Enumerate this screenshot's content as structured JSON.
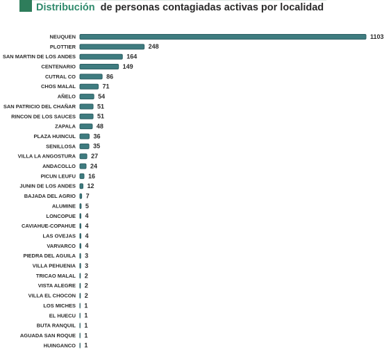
{
  "chart_data": {
    "type": "bar",
    "orientation": "horizontal",
    "title": [
      "Distribución",
      "de personas contagiadas activas por localidad"
    ],
    "color": "#3f7c80",
    "categories": [
      "NEUQUEN",
      "PLOTTIER",
      "SAN MARTIN DE LOS ANDES",
      "CENTENARIO",
      "CUTRAL CO",
      "CHOS MALAL",
      "AÑELO",
      "SAN PATRICIO DEL CHAÑAR",
      "RINCON DE LOS SAUCES",
      "ZAPALA",
      "PLAZA HUINCUL",
      "SENILLOSA",
      "VILLA LA ANGOSTURA",
      "ANDACOLLO",
      "PICUN LEUFU",
      "JUNIN DE LOS ANDES",
      "BAJADA DEL AGRIO",
      "ALUMINE",
      "LONCOPUE",
      "CAVIAHUE-COPAHUE",
      "LAS OVEJAS",
      "VARVARCO",
      "PIEDRA DEL AGUILA",
      "VILLA PEHUENIA",
      "TRICAO MALAL",
      "VISTA ALEGRE",
      "VILLA EL CHOCON",
      "LOS MICHES",
      "EL HUECU",
      "BUTA RANQUIL",
      "AGUADA SAN ROQUE",
      "HUINGANCO"
    ],
    "values": [
      1103,
      248,
      164,
      149,
      86,
      71,
      54,
      51,
      51,
      48,
      36,
      35,
      27,
      24,
      16,
      12,
      7,
      5,
      4,
      4,
      4,
      4,
      3,
      3,
      2,
      2,
      2,
      1,
      1,
      1,
      1,
      1
    ]
  }
}
